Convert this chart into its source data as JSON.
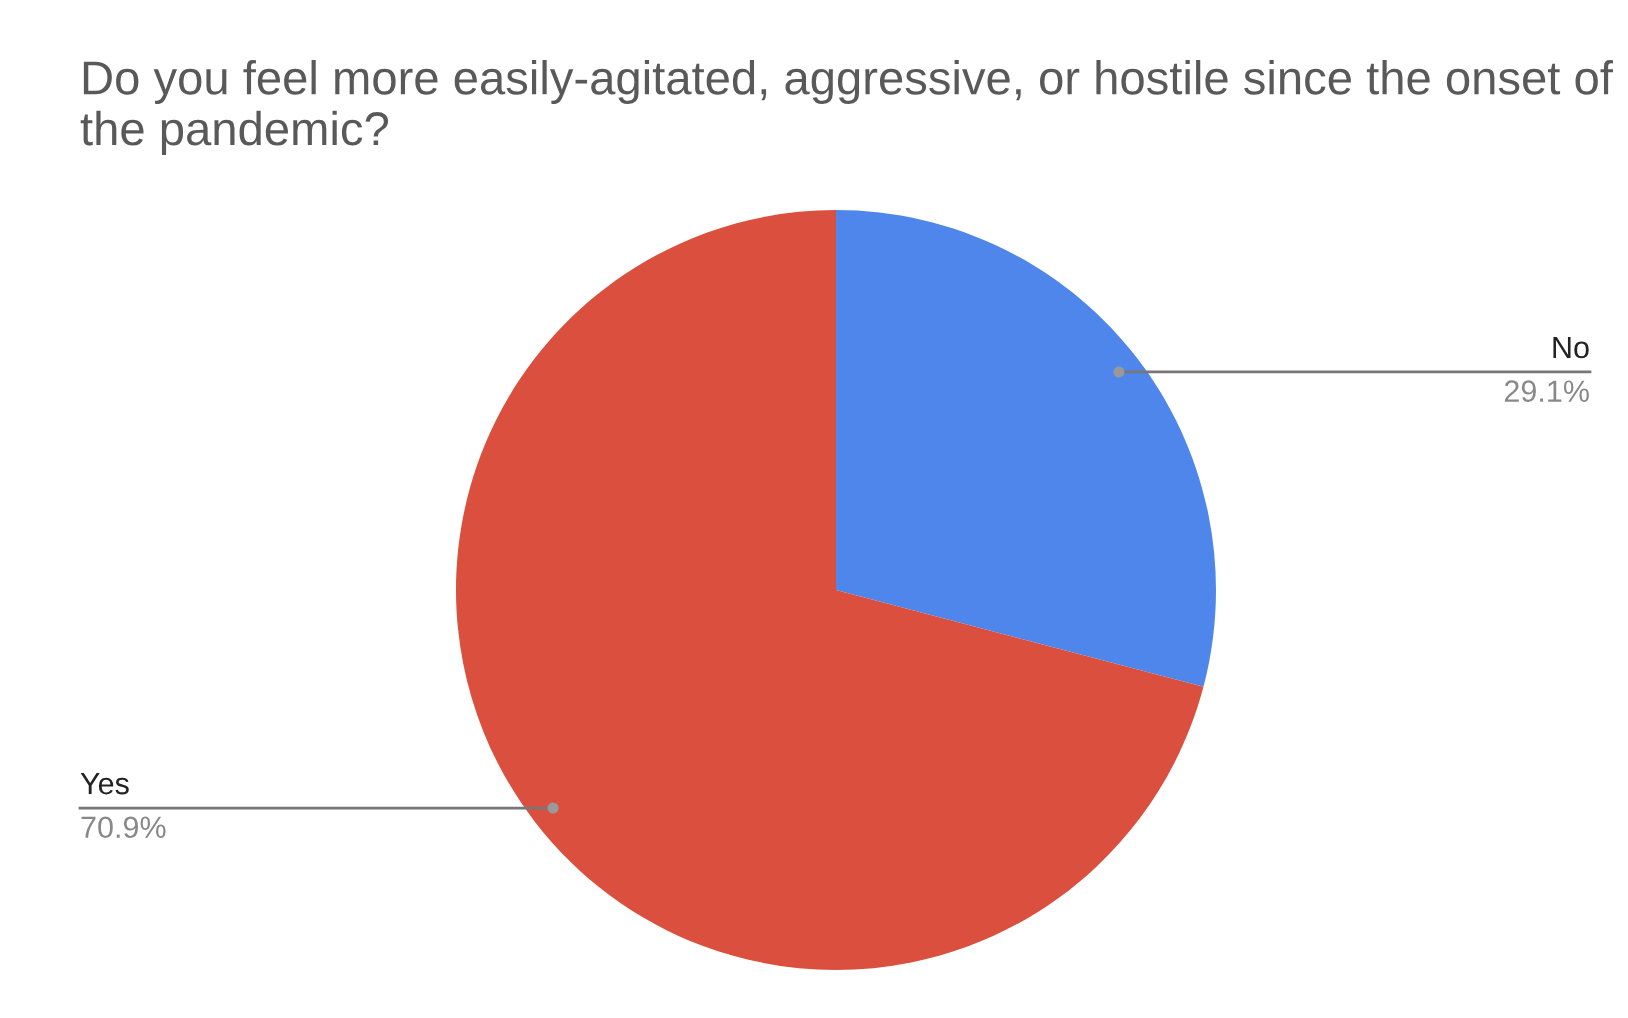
{
  "chart_data": {
    "type": "pie",
    "title": "Do you feel more easily-agitated, aggressive, or hostile since the onset of the pandemic?",
    "categories": [
      "No",
      "Yes"
    ],
    "values": [
      29.1,
      70.9
    ],
    "colors": [
      "#4e86ec",
      "#db4f3e"
    ],
    "value_labels": [
      "29.1%",
      "70.9%"
    ]
  }
}
